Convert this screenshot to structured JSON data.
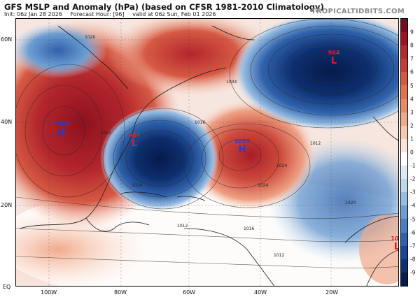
{
  "header": {
    "title": "GFS MSLP and Anomaly (hPa) (based on CFSR 1981-2010 Climatology)",
    "init": "Init: 06z Jan 28 2026",
    "forecast_hour": "Forecast Hour: [96]",
    "valid": "valid at 06z Sun, Feb 01 2026",
    "brand": "TROPICALTIDBITS.COM"
  },
  "map": {
    "lat_labels": [
      "60N",
      "40N",
      "20N",
      "EQ"
    ],
    "lon_labels": [
      "100W",
      "80W",
      "60W",
      "40W",
      "20W"
    ],
    "pressure_centers": [
      {
        "type": "H",
        "value": "1043",
        "color": "#1f3fd6"
      },
      {
        "type": "L",
        "value": "987",
        "color": "#e0192c"
      },
      {
        "type": "H",
        "value": "1027",
        "color": "#1f3fd6"
      },
      {
        "type": "L",
        "value": "964",
        "color": "#e0192c"
      },
      {
        "type": "L",
        "value": "10",
        "color": "#e0192c"
      }
    ],
    "isobar_labels": [
      "1020",
      "1012",
      "1016",
      "1004",
      "1024",
      "1024",
      "1016",
      "1012",
      "1012",
      "1012",
      "1020",
      "1024"
    ]
  },
  "colorbar": {
    "ticks": [
      "9",
      "8",
      "7",
      "6",
      "5",
      "4",
      "3",
      "2",
      "1",
      "0",
      "-1",
      "-2",
      "-3",
      "-4",
      "-5",
      "-6",
      "-7",
      "-8",
      "-9"
    ],
    "colors": [
      "#7a0a1e",
      "#9a1424",
      "#b22a2e",
      "#c43c38",
      "#d4573f",
      "#de7150",
      "#e88c68",
      "#f0a98a",
      "#f7c7b0",
      "#fce3d8",
      "#ffffff",
      "#dce8f5",
      "#bdd6ee",
      "#97bde2",
      "#6d9ed2",
      "#4a80c0",
      "#2f62ab",
      "#1b4790",
      "#0d2f70",
      "#061c50"
    ]
  }
}
